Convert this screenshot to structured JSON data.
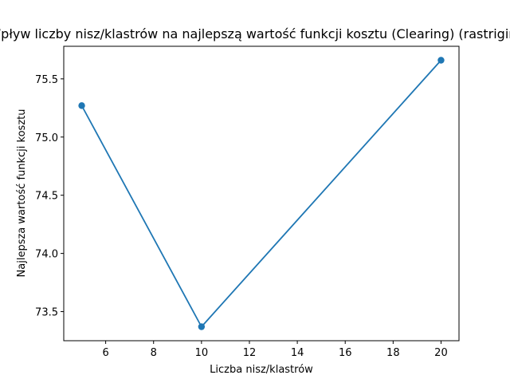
{
  "chart_data": {
    "type": "line",
    "title": "Wpływ liczby nisz/klastrów na najlepszą wartość funkcji kosztu (Clearing) (rastrigin)",
    "xlabel": "Liczba nisz/klastrów",
    "ylabel": "Najlepsza wartość funkcji kosztu",
    "xlim": [
      4.25,
      20.75
    ],
    "ylim": [
      73.25,
      75.78
    ],
    "x_ticks": [
      6,
      8,
      10,
      12,
      14,
      16,
      18,
      20
    ],
    "y_ticks": [
      73.5,
      74.0,
      74.5,
      75.0,
      75.5
    ],
    "x_tick_labels": [
      "6",
      "8",
      "10",
      "12",
      "14",
      "16",
      "18",
      "20"
    ],
    "y_tick_labels": [
      "73.5",
      "74.0",
      "74.5",
      "75.0",
      "75.5"
    ],
    "grid": false,
    "series": [
      {
        "x": [
          5,
          10,
          20
        ],
        "y": [
          75.27,
          73.37,
          75.66
        ],
        "color": "#1f77b4",
        "marker": "circle"
      }
    ]
  }
}
